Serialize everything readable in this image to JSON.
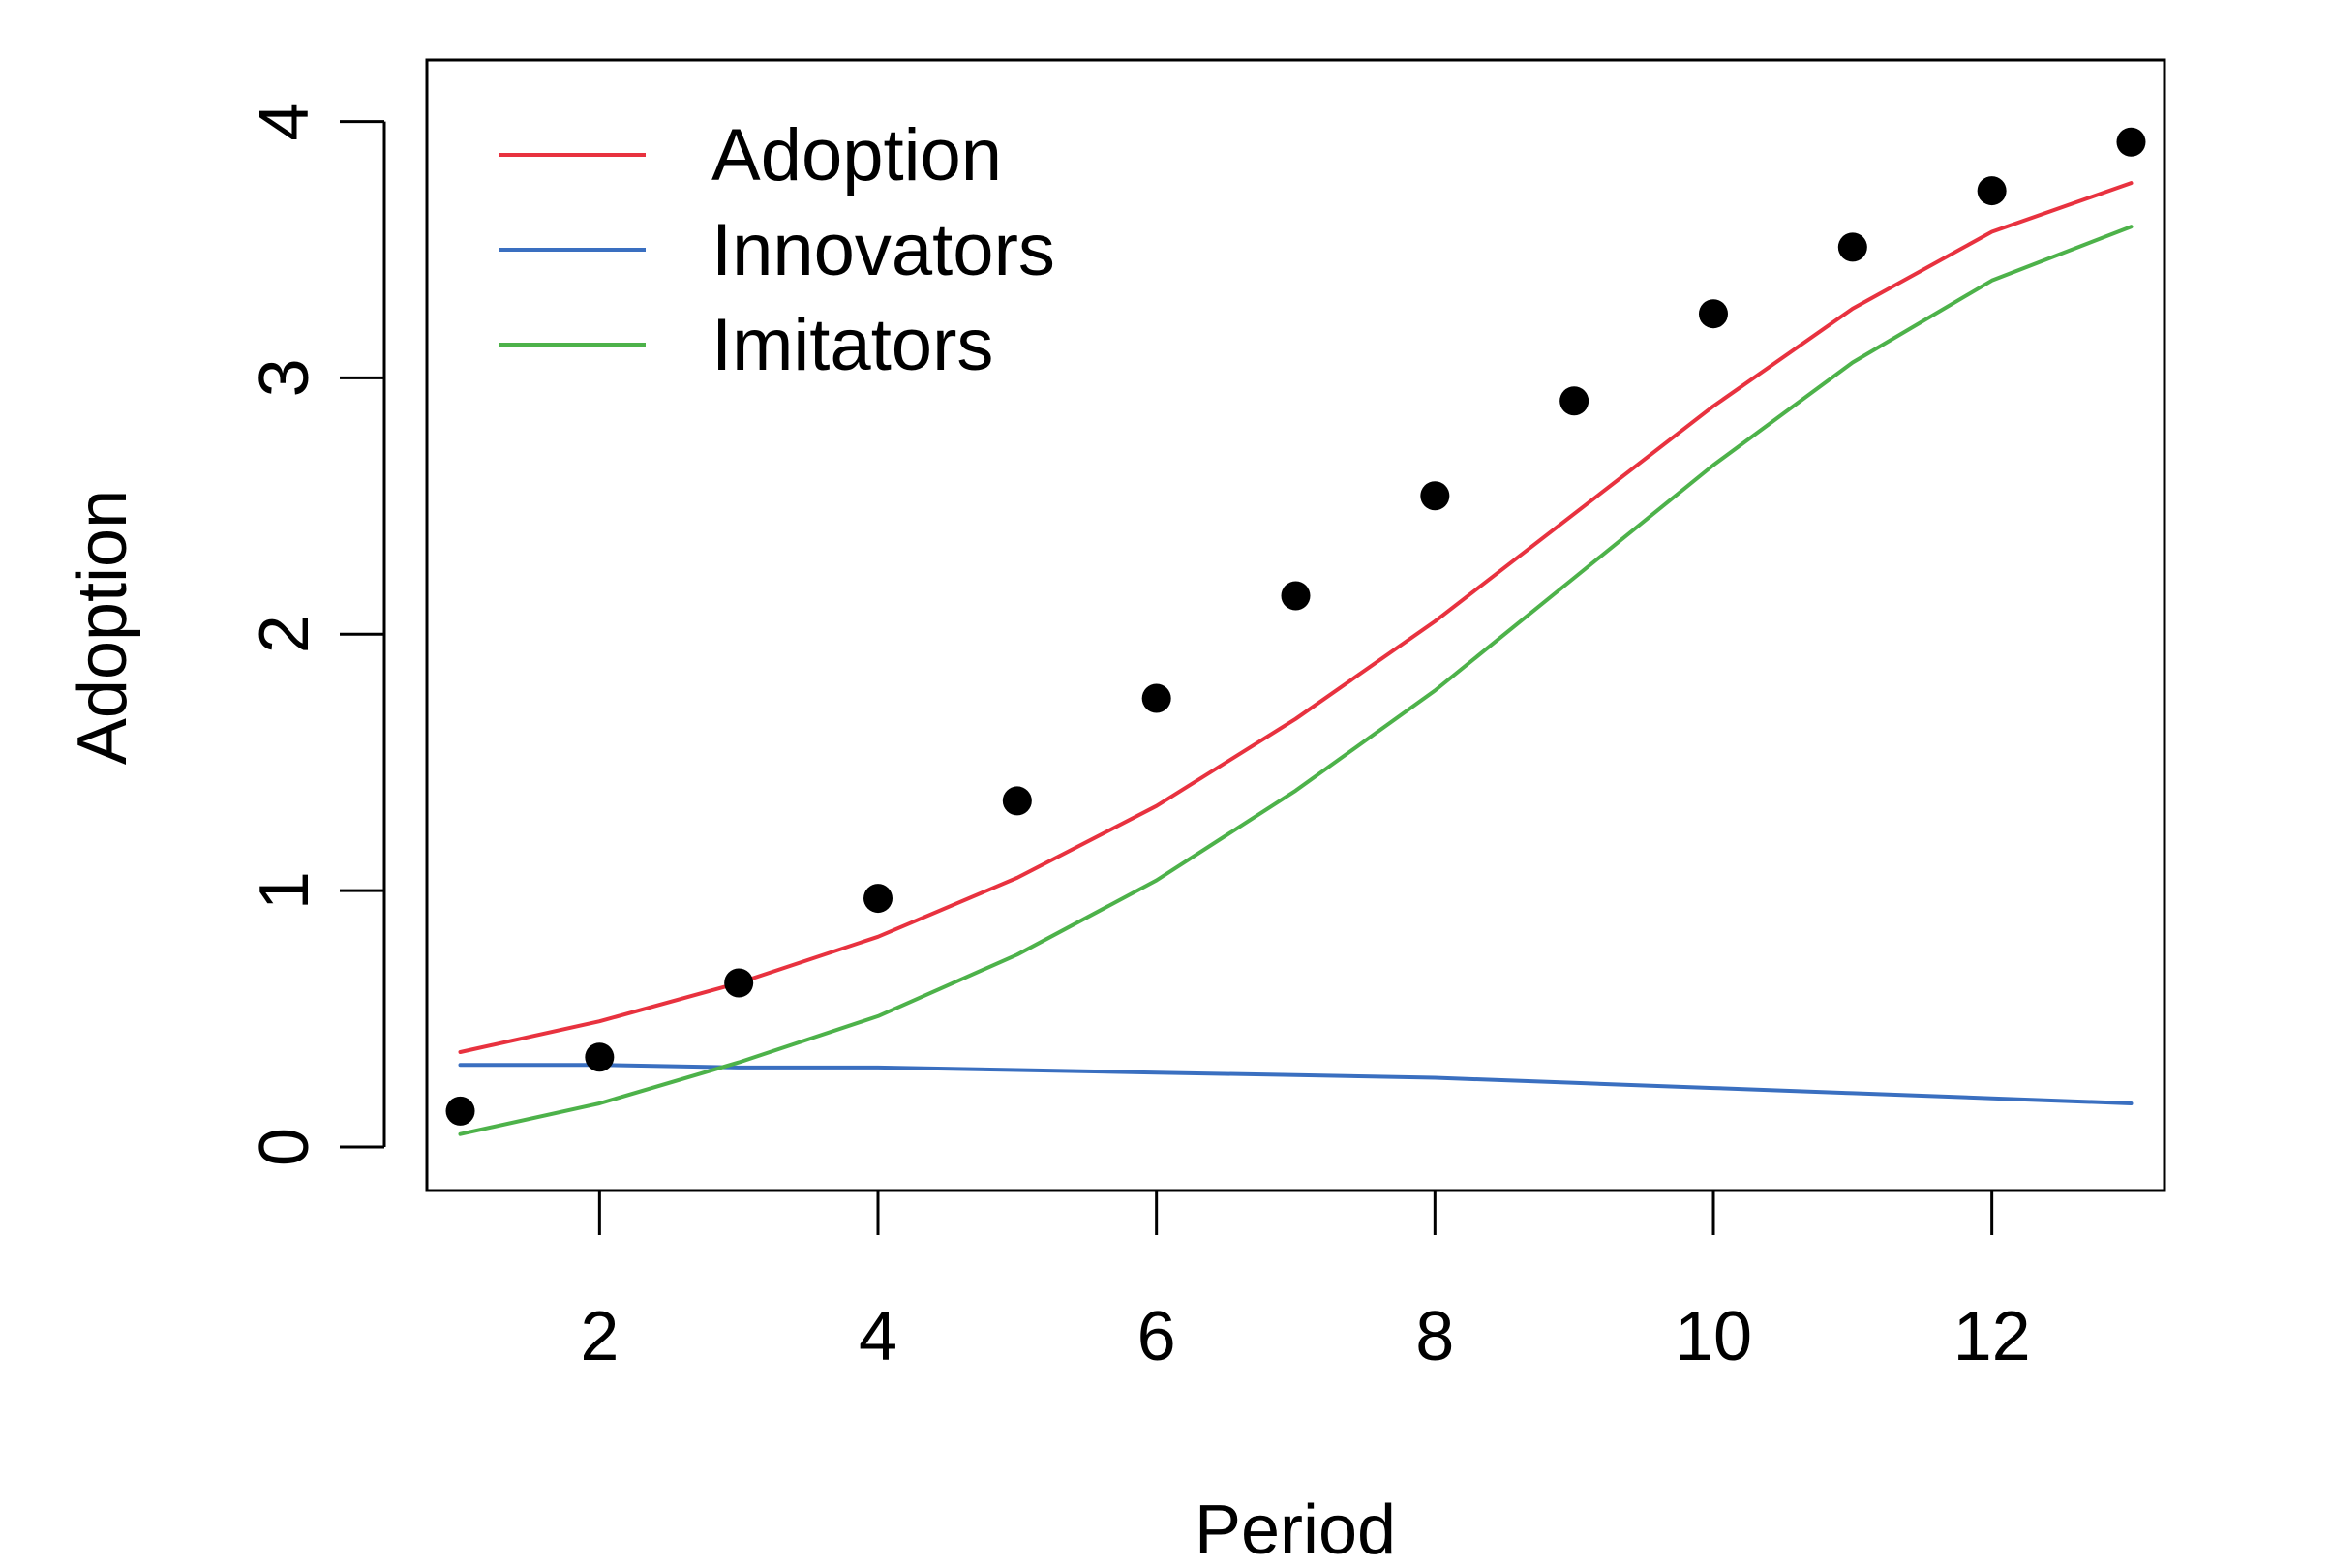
{
  "chart_data": {
    "type": "line",
    "title": "",
    "xlabel": "Period",
    "ylabel": "Adoption",
    "xlim": [
      0.76,
      13.24
    ],
    "ylim": [
      -0.17,
      4.24
    ],
    "x_ticks": [
      2,
      4,
      6,
      8,
      10,
      12
    ],
    "y_ticks": [
      0,
      1,
      2,
      3,
      4
    ],
    "x_tick_labels": [
      "2",
      "4",
      "6",
      "8",
      "10",
      "12"
    ],
    "y_tick_labels": [
      "0",
      "1",
      "2",
      "3",
      "4"
    ],
    "grid": false,
    "legend_position": "top-left",
    "x": [
      1,
      2,
      3,
      4,
      5,
      6,
      7,
      8,
      9,
      10,
      11,
      12,
      13
    ],
    "points": {
      "color": "#000000",
      "values": [
        0.14,
        0.35,
        0.64,
        0.97,
        1.35,
        1.75,
        2.15,
        2.54,
        2.91,
        3.25,
        3.51,
        3.73,
        3.92
      ]
    },
    "series": [
      {
        "name": "Adoption",
        "color": "#E8323F",
        "values": [
          0.37,
          0.49,
          0.64,
          0.82,
          1.05,
          1.33,
          1.67,
          2.05,
          2.47,
          2.89,
          3.27,
          3.57,
          3.76
        ]
      },
      {
        "name": "Innovators",
        "color": "#3A6FC0",
        "values": [
          0.32,
          0.32,
          0.31,
          0.31,
          0.3,
          0.29,
          0.28,
          0.27,
          0.25,
          0.23,
          0.21,
          0.19,
          0.17
        ]
      },
      {
        "name": "Imitators",
        "color": "#4DB24A",
        "values": [
          0.05,
          0.17,
          0.33,
          0.51,
          0.75,
          1.04,
          1.39,
          1.78,
          2.22,
          2.66,
          3.06,
          3.38,
          3.59
        ]
      }
    ]
  }
}
